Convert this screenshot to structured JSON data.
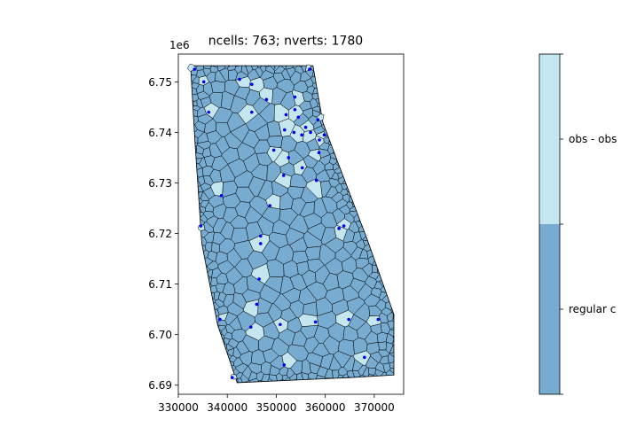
{
  "chart_data": {
    "type": "voronoi-mesh",
    "title": "ncells: 763; nverts: 1780",
    "x_ticks": [
      330000,
      340000,
      350000,
      360000,
      370000
    ],
    "x_tick_labels": [
      "330000",
      "340000",
      "350000",
      "360000",
      "370000"
    ],
    "y_ticks": [
      6.69,
      6.7,
      6.71,
      6.72,
      6.73,
      6.74,
      6.75
    ],
    "y_tick_labels": [
      "6.69",
      "6.70",
      "6.71",
      "6.72",
      "6.73",
      "6.74",
      "6.75"
    ],
    "y_offset_label": "1e6",
    "xlim": [
      330000,
      376000
    ],
    "ylim": [
      6.6882,
      6.7555
    ],
    "grid": false,
    "mesh_outline": [
      [
        332500,
        6.7532
      ],
      [
        357500,
        6.7532
      ],
      [
        359500,
        6.742
      ],
      [
        363000,
        6.733
      ],
      [
        368500,
        6.719
      ],
      [
        374000,
        6.704
      ],
      [
        374000,
        6.692
      ],
      [
        365000,
        6.6915
      ],
      [
        342000,
        6.6905
      ],
      [
        338000,
        6.702
      ],
      [
        334800,
        6.718
      ],
      [
        333400,
        6.738
      ]
    ],
    "observation_points": [
      [
        333300,
        6.7525
      ],
      [
        335200,
        6.75
      ],
      [
        342500,
        6.7505
      ],
      [
        345000,
        6.7495
      ],
      [
        356800,
        6.7525
      ],
      [
        336200,
        6.744
      ],
      [
        345000,
        6.744
      ],
      [
        348000,
        6.7465
      ],
      [
        353800,
        6.747
      ],
      [
        352000,
        6.7435
      ],
      [
        353800,
        6.7445
      ],
      [
        354500,
        6.743
      ],
      [
        356000,
        6.741
      ],
      [
        357000,
        6.74
      ],
      [
        355200,
        6.7395
      ],
      [
        353600,
        6.74
      ],
      [
        351700,
        6.7405
      ],
      [
        358500,
        6.7425
      ],
      [
        358800,
        6.7385
      ],
      [
        359800,
        6.7395
      ],
      [
        349500,
        6.7365
      ],
      [
        352500,
        6.735
      ],
      [
        358700,
        6.736
      ],
      [
        355300,
        6.733
      ],
      [
        351500,
        6.7315
      ],
      [
        358200,
        6.7305
      ],
      [
        338800,
        6.7275
      ],
      [
        348700,
        6.7255
      ],
      [
        334600,
        6.7215
      ],
      [
        346800,
        6.7195
      ],
      [
        362800,
        6.721
      ],
      [
        363800,
        6.7215
      ],
      [
        346800,
        6.718
      ],
      [
        346500,
        6.711
      ],
      [
        346000,
        6.706
      ],
      [
        338500,
        6.703
      ],
      [
        344800,
        6.7015
      ],
      [
        350800,
        6.702
      ],
      [
        358000,
        6.7025
      ],
      [
        364800,
        6.703
      ],
      [
        370800,
        6.703
      ],
      [
        368000,
        6.6955
      ],
      [
        341000,
        6.6915
      ],
      [
        351600,
        6.694
      ]
    ],
    "colorbar": {
      "categories": [
        "regular cell",
        "obs - observation cell"
      ],
      "visible_labels": [
        "regular c",
        "obs - obs"
      ],
      "colors": [
        "#77abd0",
        "#c4e6ef"
      ]
    },
    "colors": {
      "regular_cell": "#77abd0",
      "observation_cell": "#c4e6ef",
      "cell_edge": "#000000",
      "point": "#0000ee"
    }
  }
}
